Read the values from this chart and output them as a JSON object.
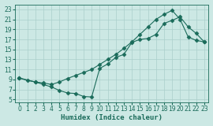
{
  "xlabel": "Humidex (Indice chaleur)",
  "xlim": [
    -0.5,
    23.5
  ],
  "ylim": [
    4.5,
    24.0
  ],
  "xticks": [
    0,
    1,
    2,
    3,
    4,
    5,
    6,
    7,
    8,
    9,
    10,
    11,
    12,
    13,
    14,
    15,
    16,
    17,
    18,
    19,
    20,
    21,
    22,
    23
  ],
  "yticks": [
    5,
    7,
    9,
    11,
    13,
    15,
    17,
    19,
    21,
    23
  ],
  "bg_color": "#cce8e4",
  "grid_color": "#aacfcb",
  "line_color": "#1a6b5a",
  "line1_x": [
    0,
    1,
    2,
    3,
    4,
    5,
    6,
    7,
    8,
    9,
    10,
    11,
    12,
    13,
    14,
    15,
    16,
    17,
    18,
    19,
    20,
    21,
    22,
    23
  ],
  "line1_y": [
    9.3,
    8.8,
    8.5,
    8.0,
    7.5,
    6.8,
    6.3,
    6.2,
    5.6,
    5.5,
    11.2,
    12.1,
    13.4,
    14.0,
    16.4,
    17.0,
    17.2,
    18.0,
    20.2,
    20.8,
    21.5,
    19.5,
    18.2,
    16.5
  ],
  "line2_x": [
    0,
    2,
    3,
    4,
    5,
    6,
    7,
    8,
    9,
    10,
    11,
    12,
    13,
    14,
    15,
    16,
    17,
    18,
    19,
    20,
    21,
    22,
    23
  ],
  "line2_y": [
    9.3,
    8.5,
    8.3,
    8.0,
    8.5,
    9.2,
    9.8,
    10.4,
    11.0,
    12.0,
    13.0,
    14.0,
    15.2,
    16.5,
    18.0,
    19.5,
    21.0,
    22.0,
    22.8,
    21.0,
    17.5,
    16.8,
    16.5
  ],
  "marker": "D",
  "markersize": 2.5,
  "linewidth": 0.8,
  "tick_fontsize": 5.5,
  "xlabel_fontsize": 6.5
}
